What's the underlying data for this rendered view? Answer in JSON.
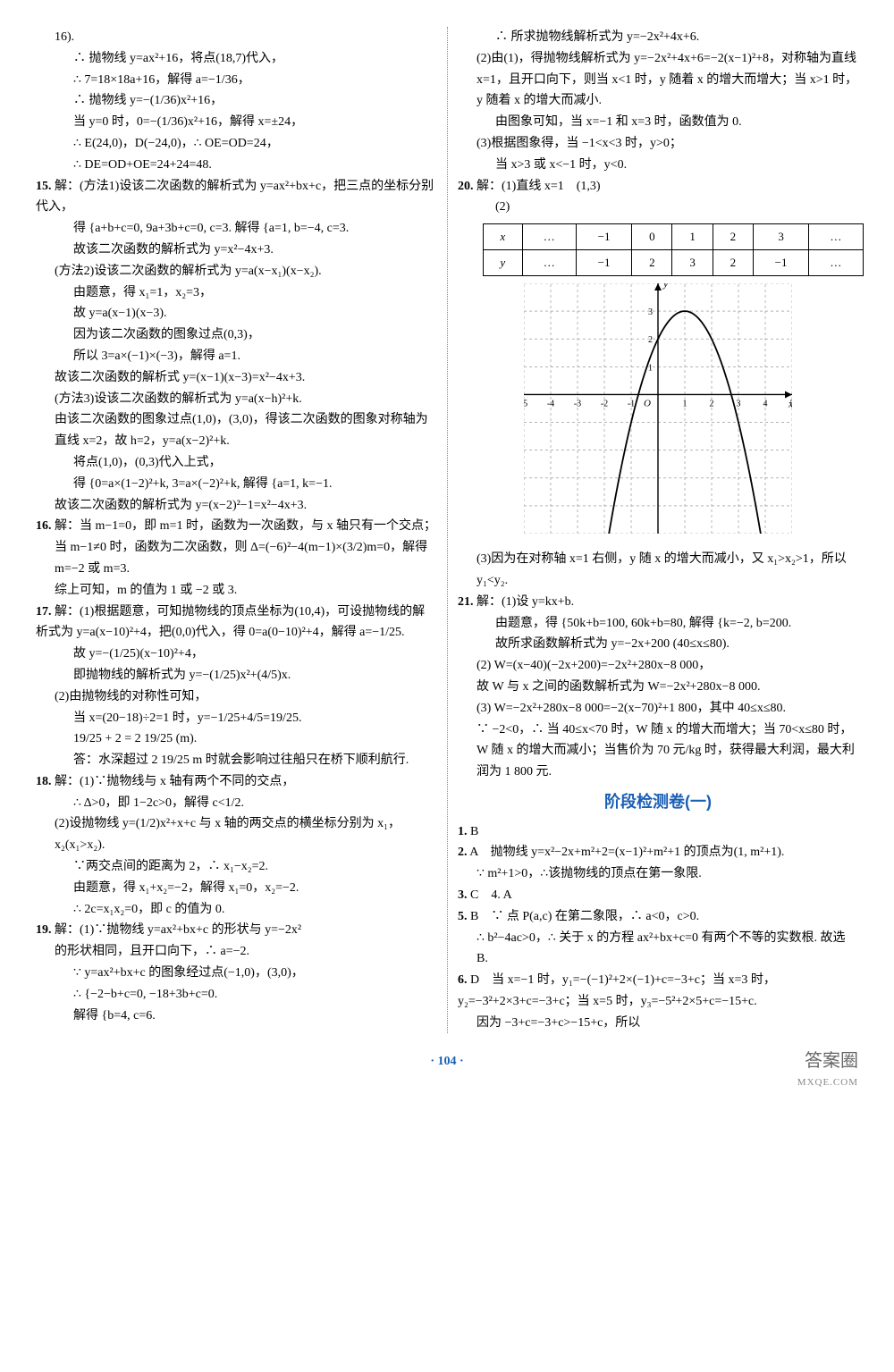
{
  "pageNumber": "· 104 ·",
  "watermark": "答案圈",
  "watermarkSub": "MXQE.COM",
  "sectionTitle": "阶段检测卷(一)",
  "left": {
    "pre14": [
      "16).",
      "∴ 抛物线 y=ax²+16，将点(18,7)代入，",
      "∴ 7=18×18a+16，解得 a=−1/36，",
      "∴ 抛物线 y=−(1/36)x²+16，",
      "当 y=0 时，0=−(1/36)x²+16，解得 x=±24，",
      "∴ E(24,0)，D(−24,0)，∴ OE=OD=24，",
      "∴ DE=OD+OE=24+24=48."
    ],
    "q15": {
      "num": "15.",
      "lines": [
        "解：(方法1)设该二次函数的解析式为 y=ax²+bx+c，把三点的坐标分别代入，",
        "得 {a+b+c=0, 9a+3b+c=0, c=3.  解得 {a=1, b=−4, c=3.",
        "故该二次函数的解析式为 y=x²−4x+3.",
        "(方法2)设该二次函数的解析式为 y=a(x−x₁)(x−x₂).",
        "由题意，得 x₁=1，x₂=3，",
        "故 y=a(x−1)(x−3).",
        "因为该二次函数的图象过点(0,3)，",
        "所以 3=a×(−1)×(−3)，解得 a=1.",
        "故该二次函数的解析式 y=(x−1)(x−3)=x²−4x+3.",
        "(方法3)设该二次函数的解析式为 y=a(x−h)²+k.",
        "由该二次函数的图象过点(1,0)，(3,0)，得该二次函数的图象对称轴为直线 x=2，故 h=2，y=a(x−2)²+k.",
        "将点(1,0)，(0,3)代入上式，",
        "得 {0=a×(1−2)²+k, 3=a×(−2)²+k,  解得 {a=1, k=−1.",
        "故该二次函数的解析式为 y=(x−2)²−1=x²−4x+3."
      ]
    },
    "q16": {
      "num": "16.",
      "lines": [
        "解：当 m−1=0，即 m=1 时，函数为一次函数，与 x 轴只有一个交点；",
        "当 m−1≠0 时，函数为二次函数，则 Δ=(−6)²−4(m−1)×(3/2)m=0，解得 m=−2 或 m=3.",
        "综上可知，m 的值为 1 或 −2 或 3."
      ]
    },
    "q17": {
      "num": "17.",
      "lines": [
        "解：(1)根据题意，可知抛物线的顶点坐标为(10,4)，可设抛物线的解析式为 y=a(x−10)²+4，把(0,0)代入，得 0=a(0−10)²+4，解得 a=−1/25.",
        "故 y=−(1/25)(x−10)²+4，",
        "即抛物线的解析式为 y=−(1/25)x²+(4/5)x.",
        "(2)由抛物线的对称性可知，",
        "当 x=(20−18)÷2=1 时，y=−1/25+4/5=19/25.",
        "19/25 + 2 = 2 19/25 (m).",
        "答：水深超过 2 19/25 m 时就会影响过往船只在桥下顺利航行."
      ]
    },
    "q18": {
      "num": "18.",
      "lines": [
        "解：(1)∵抛物线与 x 轴有两个不同的交点，",
        "∴ Δ>0，即 1−2c>0，解得 c<1/2.",
        "(2)设抛物线 y=(1/2)x²+x+c 与 x 轴的两交点的横坐标分别为 x₁，x₂(x₁>x₂).",
        "∵两交点间的距离为 2，∴ x₁−x₂=2.",
        "由题意，得 x₁+x₂=−2，解得 x₁=0，x₂=−2.",
        "∴ 2c=x₁x₂=0，即 c 的值为 0."
      ]
    },
    "q19": {
      "num": "19.",
      "first": "解：(1)∵抛物线 y=ax²+bx+c 的形状与 y=−2x²"
    }
  },
  "right": {
    "q19cont": [
      "的形状相同，且开口向下，∴ a=−2.",
      "∵ y=ax²+bx+c 的图象经过点(−1,0)，(3,0)，",
      "∴ {−2−b+c=0, −18+3b+c=0.",
      "解得 {b=4, c=6.",
      "∴ 所求抛物线解析式为 y=−2x²+4x+6.",
      "(2)由(1)，得抛物线解析式为 y=−2x²+4x+6=−2(x−1)²+8，对称轴为直线 x=1，且开口向下，则当 x<1 时，y 随着 x 的增大而增大；当 x>1 时，y 随着 x 的增大而减小.",
      "由图象可知，当 x=−1 和 x=3 时，函数值为 0.",
      "(3)根据图象得，当 −1<x<3 时，y>0；",
      "当 x>3 或 x<−1 时，y<0."
    ],
    "q20": {
      "num": "20.",
      "head": "解：(1)直线 x=1　(1,3)",
      "sub2": "(2)",
      "table": {
        "row1": [
          "x",
          "…",
          "−1",
          "0",
          "1",
          "2",
          "3",
          "…"
        ],
        "row2": [
          "y",
          "…",
          "−1",
          "2",
          "3",
          "2",
          "−1",
          "…"
        ]
      },
      "graph": {
        "xmin": -5,
        "xmax": 5,
        "ymin": -5,
        "ymax": 4,
        "vertex": [
          1,
          3
        ],
        "roots": [
          -0.73,
          2.73
        ],
        "curveColor": "#000",
        "gridColor": "#888",
        "axisColor": "#000"
      },
      "sub3": "(3)因为在对称轴 x=1 右侧，y 随 x 的增大而减小，又 x₁>x₂>1，所以 y₁<y₂."
    },
    "q21": {
      "num": "21.",
      "lines": [
        "解：(1)设 y=kx+b.",
        "由题意，得 {50k+b=100, 60k+b=80,  解得 {k=−2, b=200.",
        "故所求函数解析式为 y=−2x+200 (40≤x≤80).",
        "(2) W=(x−40)(−2x+200)=−2x²+280x−8 000，",
        "故 W 与 x 之间的函数解析式为 W=−2x²+280x−8 000.",
        "(3) W=−2x²+280x−8 000=−2(x−70)²+1 800，其中 40≤x≤80.",
        "∵ −2<0，∴ 当 40≤x<70 时，W 随 x 的增大而增大；当 70<x≤80 时，W 随 x 的增大而减小；当售价为 70 元/kg 时，获得最大利润，最大利润为 1 800 元."
      ]
    },
    "answers": [
      {
        "n": "1.",
        "t": "B"
      },
      {
        "n": "2.",
        "t": "A　抛物线 y=x²−2x+m²+2=(x−1)²+m²+1 的顶点为(1, m²+1)."
      },
      {
        "n": "",
        "t": "∵ m²+1>0，∴该抛物线的顶点在第一象限."
      },
      {
        "n": "3.",
        "t": "C　4. A"
      },
      {
        "n": "5.",
        "t": "B　∵ 点 P(a,c) 在第二象限，∴ a<0，c>0."
      },
      {
        "n": "",
        "t": "∴ b²−4ac>0，∴ 关于 x 的方程 ax²+bx+c=0 有两个不等的实数根. 故选 B."
      },
      {
        "n": "6.",
        "t": "D　当 x=−1 时，y₁=−(−1)²+2×(−1)+c=−3+c；当 x=3 时，y₂=−3²+2×3+c=−3+c；当 x=5 时，y₃=−5²+2×5+c=−15+c."
      },
      {
        "n": "",
        "t": "因为 −3+c=−3+c>−15+c，所以"
      }
    ]
  }
}
